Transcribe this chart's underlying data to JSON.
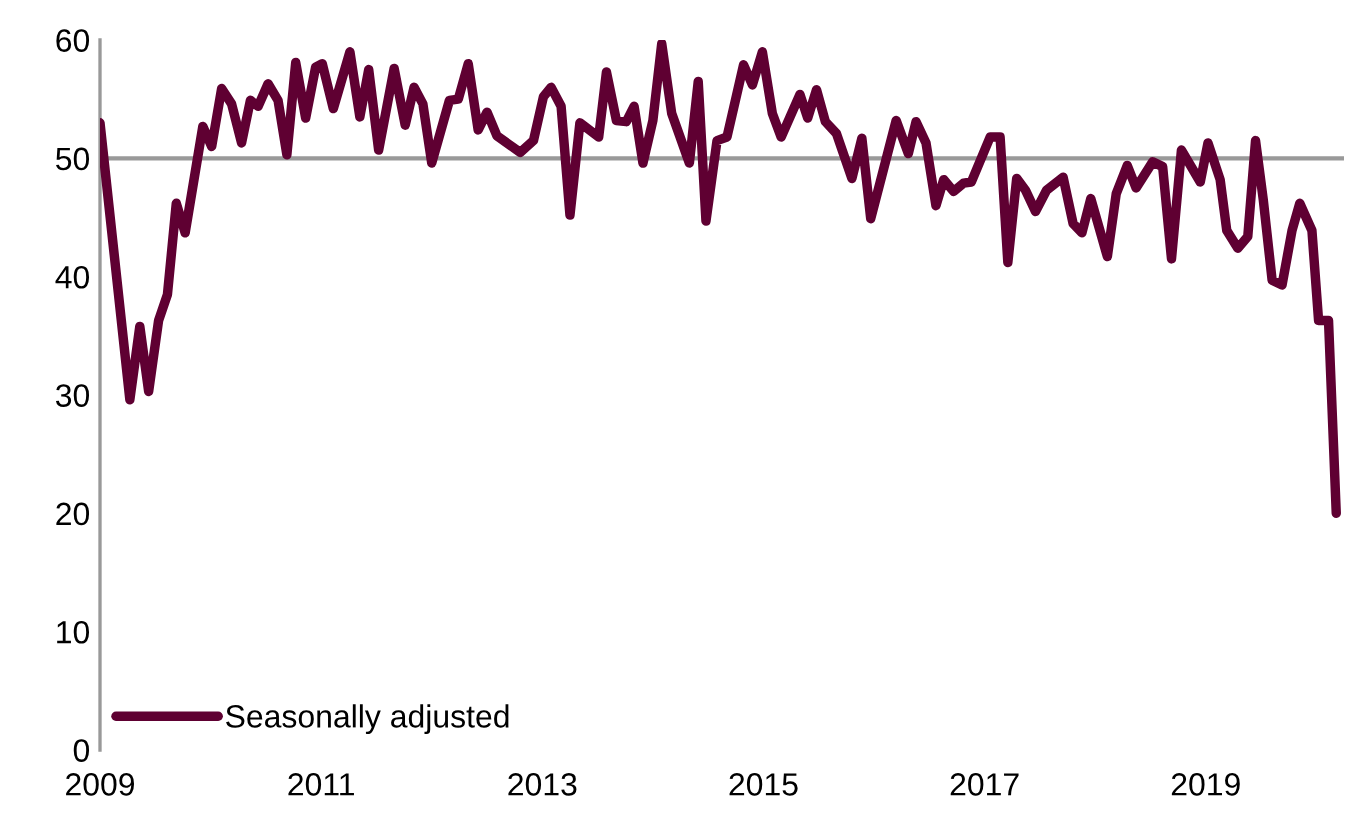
{
  "chart_data": {
    "type": "line",
    "series": [
      {
        "name": "Seasonally adjusted",
        "color": "#5f0032",
        "x": [
          2009.0,
          2009.27,
          2009.36,
          2009.44,
          2009.53,
          2009.61,
          2009.69,
          2009.77,
          2009.93,
          2010.01,
          2010.1,
          2010.19,
          2010.28,
          2010.36,
          2010.43,
          2010.52,
          2010.61,
          2010.69,
          2010.77,
          2010.86,
          2010.95,
          2011.01,
          2011.11,
          2011.26,
          2011.35,
          2011.43,
          2011.52,
          2011.66,
          2011.76,
          2011.84,
          2011.92,
          2012.0,
          2012.16,
          2012.24,
          2012.33,
          2012.42,
          2012.5,
          2012.59,
          2012.8,
          2012.92,
          2013.01,
          2013.08,
          2013.17,
          2013.25,
          2013.34,
          2013.51,
          2013.58,
          2013.67,
          2013.76,
          2013.83,
          2013.91,
          2014.0,
          2014.08,
          2014.17,
          2014.33,
          2014.41,
          2014.48,
          2014.58,
          2014.67,
          2014.82,
          2014.9,
          2014.99,
          2015.08,
          2015.16,
          2015.33,
          2015.4,
          2015.48,
          2015.56,
          2015.66,
          2015.8,
          2015.89,
          2015.97,
          2016.2,
          2016.31,
          2016.38,
          2016.47,
          2016.56,
          2016.63,
          2016.72,
          2016.81,
          2016.88,
          2017.05,
          2017.14,
          2017.21,
          2017.29,
          2017.37,
          2017.46,
          2017.56,
          2017.71,
          2017.8,
          2017.88,
          2017.96,
          2018.11,
          2018.19,
          2018.29,
          2018.37,
          2018.52,
          2018.61,
          2018.69,
          2018.78,
          2018.95,
          2019.02,
          2019.13,
          2019.19,
          2019.29,
          2019.38,
          2019.45,
          2019.52,
          2019.6,
          2019.69,
          2019.78,
          2019.85,
          2019.96,
          2020.02,
          2020.11,
          2020.18
        ],
        "values": [
          53.0,
          29.6,
          35.8,
          30.3,
          36.3,
          38.5,
          46.2,
          43.7,
          52.7,
          51.0,
          55.9,
          54.6,
          51.3,
          54.9,
          54.4,
          56.3,
          54.9,
          50.3,
          58.1,
          53.4,
          57.7,
          58.0,
          54.2,
          59.0,
          53.5,
          57.5,
          50.7,
          57.6,
          52.8,
          56.0,
          54.6,
          49.6,
          54.9,
          55.0,
          58.0,
          52.4,
          53.9,
          51.9,
          50.5,
          51.5,
          55.2,
          56.0,
          54.4,
          45.2,
          53.0,
          51.8,
          57.3,
          53.2,
          53.1,
          54.4,
          49.6,
          53.2,
          59.7,
          53.8,
          49.6,
          56.5,
          44.7,
          51.5,
          51.8,
          57.9,
          56.2,
          59.0,
          53.8,
          51.8,
          55.4,
          53.4,
          55.8,
          53.1,
          52.1,
          48.3,
          51.7,
          44.9,
          53.2,
          50.4,
          53.1,
          51.3,
          46.0,
          48.2,
          47.2,
          47.9,
          48.0,
          51.8,
          51.8,
          41.2,
          48.3,
          47.3,
          45.5,
          47.3,
          48.4,
          44.5,
          43.7,
          46.6,
          41.7,
          47.0,
          49.4,
          47.5,
          49.7,
          49.3,
          41.5,
          50.7,
          48.0,
          51.3,
          48.2,
          43.9,
          42.4,
          43.4,
          51.5,
          46.5,
          39.7,
          39.3,
          43.9,
          46.2,
          43.9,
          36.3,
          36.3,
          20.0
        ]
      }
    ],
    "xlim": [
      2009,
      2020.25
    ],
    "xticks": [
      2009,
      2011,
      2013,
      2015,
      2017,
      2019
    ],
    "ylim": [
      0,
      60
    ],
    "yticks": [
      0,
      10,
      20,
      30,
      40,
      50,
      60
    ],
    "ref_lines": [
      {
        "axis": "y",
        "value": 50,
        "color": "#999999"
      }
    ],
    "grid": false,
    "legend": "bottom left",
    "line_style": "solid",
    "marker": "none"
  }
}
